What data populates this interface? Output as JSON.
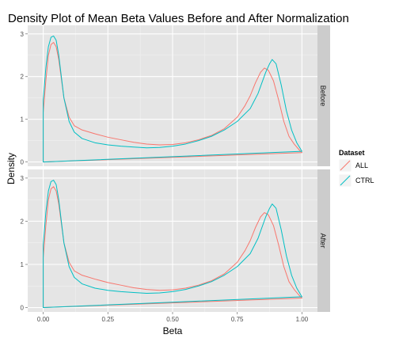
{
  "chart_data": {
    "type": "density",
    "title": "Density Plot of Mean Beta Values Before and After Normalization",
    "xlabel": "Beta",
    "ylabel": "Density",
    "xlim": [
      -0.06,
      1.06
    ],
    "ylim": [
      -0.1,
      3.2
    ],
    "x_ticks": [
      0,
      0.25,
      0.5,
      0.75,
      1
    ],
    "x_tick_labels": [
      "0.00",
      "0.25",
      "0.50",
      "0.75",
      "1.00"
    ],
    "y_ticks": [
      0,
      1,
      2,
      3
    ],
    "y_tick_labels": [
      "0",
      "1",
      "2",
      "3"
    ],
    "facets": [
      "Before",
      "After"
    ],
    "legend": {
      "title": "Dataset",
      "entries": [
        {
          "label": "ALL",
          "color": "#f8766d"
        },
        {
          "label": "CTRL",
          "color": "#00bfc4"
        }
      ]
    },
    "series": [
      {
        "name": "ALL",
        "color": "#f8766d",
        "points": [
          [
            0,
            0
          ],
          [
            0,
            1.15
          ],
          [
            0.01,
            1.9
          ],
          [
            0.02,
            2.5
          ],
          [
            0.03,
            2.75
          ],
          [
            0.04,
            2.8
          ],
          [
            0.05,
            2.7
          ],
          [
            0.06,
            2.4
          ],
          [
            0.07,
            1.95
          ],
          [
            0.08,
            1.5
          ],
          [
            0.1,
            1.05
          ],
          [
            0.12,
            0.85
          ],
          [
            0.15,
            0.75
          ],
          [
            0.2,
            0.66
          ],
          [
            0.25,
            0.58
          ],
          [
            0.3,
            0.52
          ],
          [
            0.35,
            0.46
          ],
          [
            0.4,
            0.42
          ],
          [
            0.45,
            0.4
          ],
          [
            0.5,
            0.41
          ],
          [
            0.55,
            0.45
          ],
          [
            0.6,
            0.52
          ],
          [
            0.65,
            0.62
          ],
          [
            0.7,
            0.78
          ],
          [
            0.75,
            1.05
          ],
          [
            0.78,
            1.32
          ],
          [
            0.8,
            1.55
          ],
          [
            0.82,
            1.85
          ],
          [
            0.84,
            2.1
          ],
          [
            0.855,
            2.2
          ],
          [
            0.87,
            2.15
          ],
          [
            0.89,
            1.9
          ],
          [
            0.91,
            1.45
          ],
          [
            0.93,
            0.95
          ],
          [
            0.95,
            0.6
          ],
          [
            0.97,
            0.42
          ],
          [
            0.99,
            0.28
          ],
          [
            1.0,
            0.22
          ]
        ]
      },
      {
        "name": "CTRL",
        "color": "#00bfc4",
        "points": [
          [
            0,
            0
          ],
          [
            0,
            1.45
          ],
          [
            0.01,
            2.2
          ],
          [
            0.02,
            2.7
          ],
          [
            0.03,
            2.92
          ],
          [
            0.04,
            2.95
          ],
          [
            0.05,
            2.85
          ],
          [
            0.06,
            2.5
          ],
          [
            0.07,
            2.0
          ],
          [
            0.08,
            1.5
          ],
          [
            0.1,
            0.95
          ],
          [
            0.12,
            0.7
          ],
          [
            0.15,
            0.55
          ],
          [
            0.2,
            0.45
          ],
          [
            0.25,
            0.4
          ],
          [
            0.3,
            0.37
          ],
          [
            0.35,
            0.35
          ],
          [
            0.4,
            0.33
          ],
          [
            0.45,
            0.34
          ],
          [
            0.5,
            0.37
          ],
          [
            0.55,
            0.42
          ],
          [
            0.6,
            0.5
          ],
          [
            0.65,
            0.6
          ],
          [
            0.7,
            0.75
          ],
          [
            0.75,
            0.95
          ],
          [
            0.8,
            1.25
          ],
          [
            0.83,
            1.6
          ],
          [
            0.86,
            2.1
          ],
          [
            0.875,
            2.3
          ],
          [
            0.885,
            2.4
          ],
          [
            0.9,
            2.3
          ],
          [
            0.92,
            1.8
          ],
          [
            0.94,
            1.2
          ],
          [
            0.96,
            0.75
          ],
          [
            0.98,
            0.45
          ],
          [
            1.0,
            0.25
          ]
        ]
      }
    ]
  }
}
